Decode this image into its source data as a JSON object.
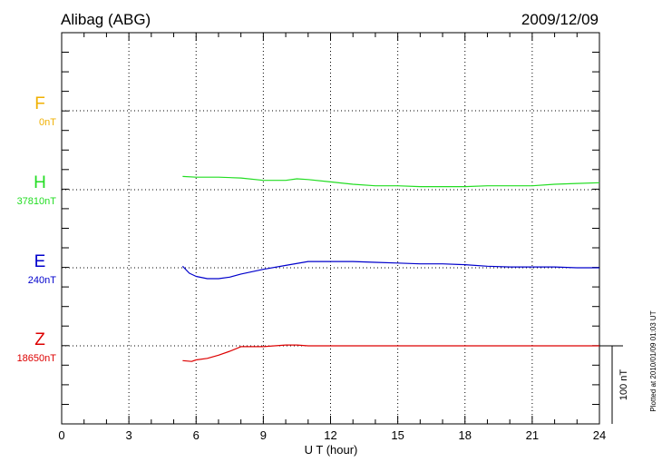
{
  "header": {
    "station": "Alibag (ABG)",
    "date": "2009/12/09"
  },
  "components": [
    {
      "key": "F",
      "label": "F",
      "baseline": "0nT",
      "color": "#f0b000"
    },
    {
      "key": "H",
      "label": "H",
      "baseline": "37810nT",
      "color": "#22dd22"
    },
    {
      "key": "E",
      "label": "E",
      "baseline": "240nT",
      "color": "#0000cc"
    },
    {
      "key": "Z",
      "label": "Z",
      "baseline": "18650nT",
      "color": "#dd0000"
    }
  ],
  "footer": {
    "plotted_note": "Plotted at 2010/01/09 01:03 UT",
    "scale_bar_label": "100 nT"
  },
  "chart_data": {
    "type": "line",
    "xlabel": "U T (hour)",
    "xlim": [
      0,
      24
    ],
    "x_ticks": [
      0,
      3,
      6,
      9,
      12,
      15,
      18,
      21,
      24
    ],
    "scale_bar_nT": 100,
    "grid": true,
    "series": [
      {
        "name": "F",
        "color": "#f0b000",
        "x": [],
        "y": []
      },
      {
        "name": "H",
        "color": "#22dd22",
        "x": [
          5.4,
          6,
          7,
          8,
          9,
          10,
          10.5,
          11,
          12,
          13,
          14,
          15,
          16,
          17,
          18,
          19,
          20,
          21,
          22,
          23,
          24
        ],
        "y": [
          17,
          16,
          16,
          15,
          12,
          12,
          14,
          13,
          10,
          7,
          5,
          5,
          4,
          4,
          4,
          5,
          5,
          5,
          7,
          8,
          9
        ]
      },
      {
        "name": "E",
        "color": "#0000cc",
        "x": [
          5.4,
          5.7,
          6,
          6.5,
          7,
          7.5,
          8,
          9,
          10,
          11,
          11.5,
          12,
          13,
          14,
          15,
          16,
          17,
          18,
          19,
          20,
          21,
          22,
          23,
          24
        ],
        "y": [
          2,
          -7,
          -11,
          -14,
          -14,
          -12,
          -8,
          -2,
          3,
          8,
          8,
          8,
          8,
          7,
          6,
          5,
          5,
          4,
          2,
          1,
          1,
          1,
          0,
          0
        ]
      },
      {
        "name": "Z",
        "color": "#dd0000",
        "x": [
          5.4,
          5.8,
          6,
          6.5,
          7,
          7.5,
          8,
          9,
          10,
          10.5,
          11,
          12,
          14,
          16,
          18,
          20,
          22,
          24
        ],
        "y": [
          -19,
          -20,
          -18,
          -16,
          -12,
          -7,
          -1,
          -1,
          1,
          1,
          0,
          0,
          0,
          0,
          0,
          0,
          0,
          0
        ]
      }
    ]
  }
}
